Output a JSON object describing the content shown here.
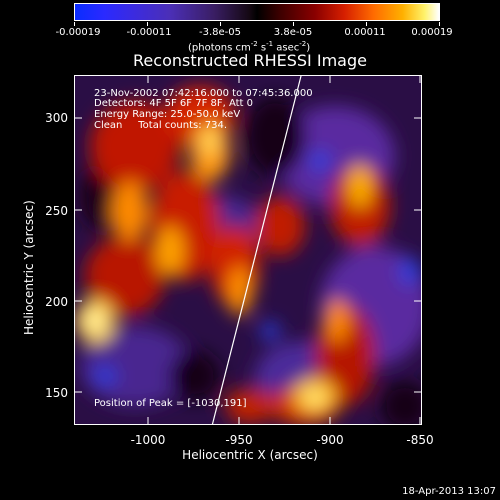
{
  "colorbar": {
    "tick_labels": [
      "-0.00019",
      "-0.00011",
      "-3.8e-05",
      "3.8e-05",
      "0.00011",
      "0.00019"
    ],
    "units_text": "(photons cm",
    "units_sup1": "-2",
    "units_mid": " s",
    "units_sup2": "-1",
    "units_end": " asec",
    "units_sup3": "-2",
    "units_close": ")"
  },
  "title": "Reconstructed RHESSI Image",
  "annotations": {
    "time_range": "23-Nov-2002 07:42:16.000 to 07:45:36.000",
    "detectors": "Detectors: 4F 5F 6F 7F 8F, Att 0",
    "energy": "Energy Range: 25.0-50.0 keV",
    "clean": "Clean     Total counts: 734."
  },
  "peak_text": "Position of Peak = [-1030,191]",
  "axes": {
    "y_tick_labels": [
      "300",
      "250",
      "200",
      "150"
    ],
    "x_tick_labels": [
      "-1000",
      "-950",
      "-900",
      "-850"
    ],
    "y_label": "Heliocentric Y (arcsec)",
    "x_label": "Heliocentric X (arcsec)"
  },
  "footer_date": "18-Apr-2013 13:07",
  "colors": {
    "limb_line": "#ffffff",
    "background": "#000000"
  }
}
